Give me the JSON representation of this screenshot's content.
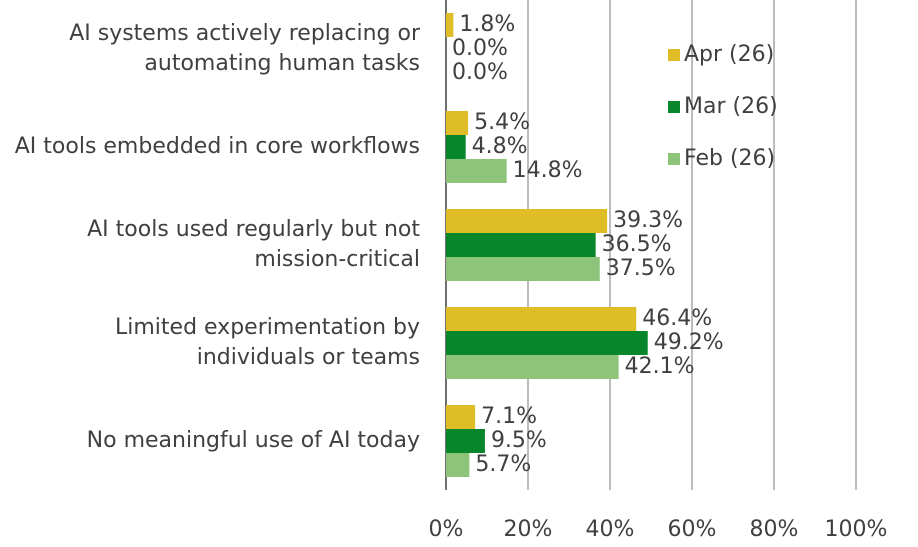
{
  "chart_data": {
    "type": "bar",
    "orientation": "horizontal",
    "categories": [
      "AI systems actively replacing or automating human tasks",
      "AI tools embedded in core workflows",
      "AI tools used regularly but not mission-critical",
      "Limited experimentation by individuals or teams",
      "No meaningful use of AI today"
    ],
    "series": [
      {
        "name": "Apr (26)",
        "color": "#dfbd26",
        "values": [
          1.8,
          5.4,
          39.3,
          46.4,
          7.1
        ],
        "value_labels": [
          "1.8%",
          "5.4%",
          "39.3%",
          "46.4%",
          "7.1%"
        ]
      },
      {
        "name": "Mar (26)",
        "color": "#08862b",
        "values": [
          0.0,
          4.8,
          36.5,
          49.2,
          9.5
        ],
        "value_labels": [
          "0.0%",
          "4.8%",
          "36.5%",
          "49.2%",
          "9.5%"
        ]
      },
      {
        "name": "Feb (26)",
        "color": "#8dc47a",
        "values": [
          0.0,
          14.8,
          37.5,
          42.1,
          5.7
        ],
        "value_labels": [
          "0.0%",
          "14.8%",
          "37.5%",
          "42.1%",
          "5.7%"
        ]
      }
    ],
    "xlim": [
      0,
      100
    ],
    "xticks": [
      {
        "value": 0,
        "label": "0%"
      },
      {
        "value": 20,
        "label": "20%"
      },
      {
        "value": 40,
        "label": "40%"
      },
      {
        "value": 60,
        "label": "60%"
      },
      {
        "value": 80,
        "label": "80%"
      },
      {
        "value": 100,
        "label": "100%"
      }
    ],
    "grid": true,
    "legend": "upper right"
  }
}
